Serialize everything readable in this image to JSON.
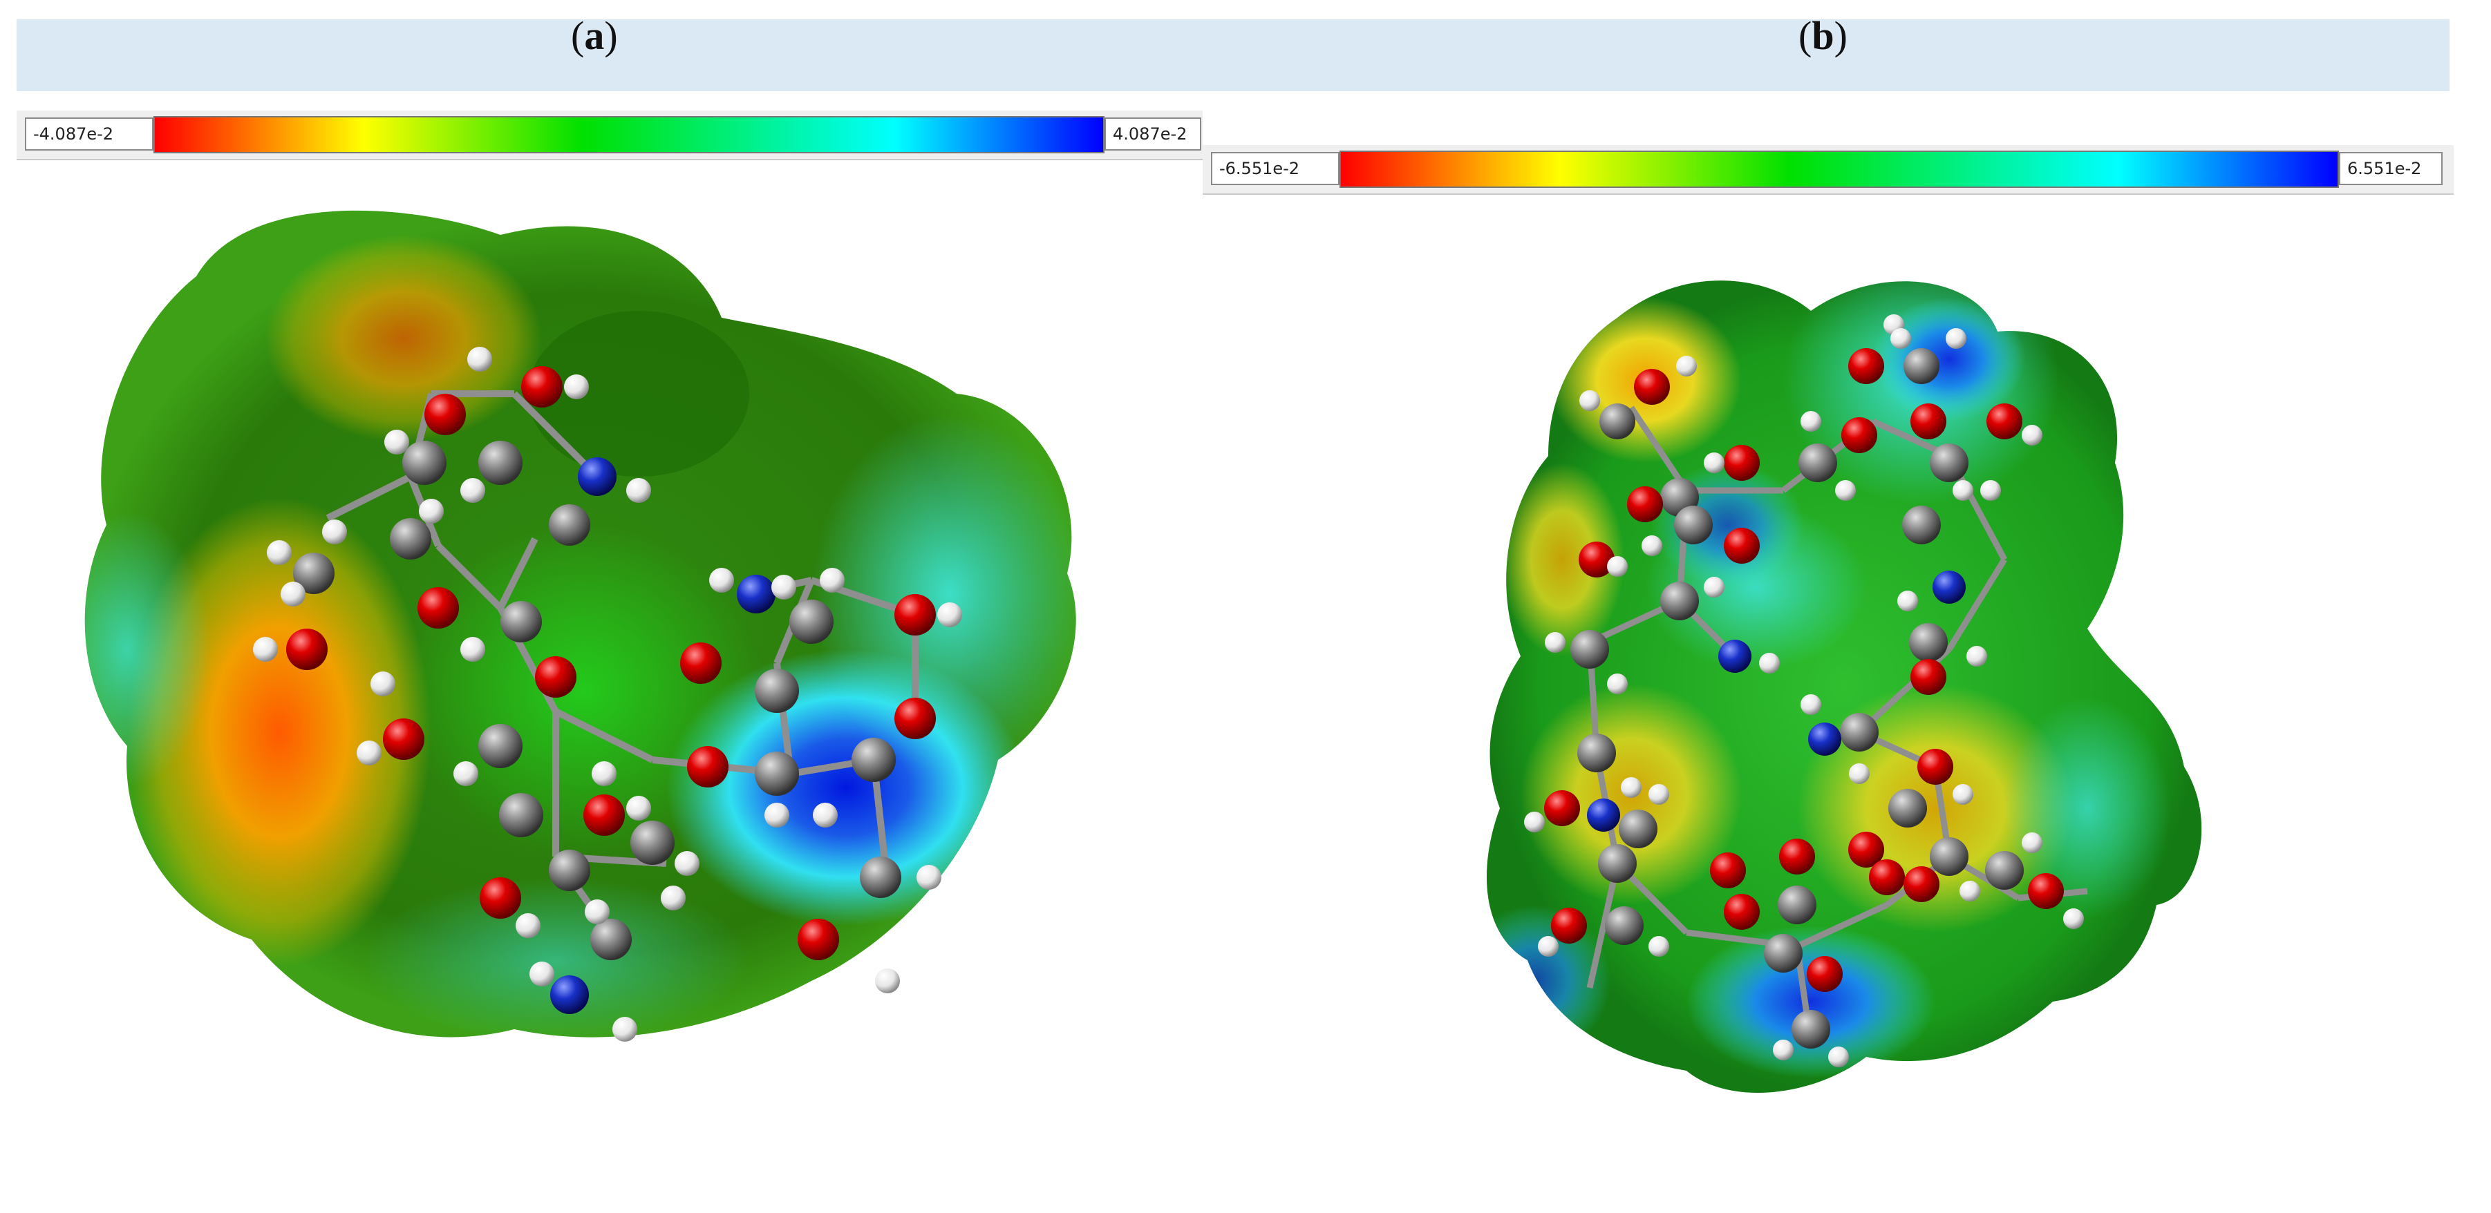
{
  "panels": [
    {
      "label": "a",
      "scale_min": "-4.087e-2",
      "scale_max": "4.087e-2"
    },
    {
      "label": "b",
      "scale_min": "-6.551e-2",
      "scale_max": "6.551e-2"
    }
  ],
  "colors": {
    "header_bg": "#dbe9f5",
    "scale": [
      "#ff0000",
      "#ffff00",
      "#00e000",
      "#00ffff",
      "#0000ff"
    ],
    "atom_oxygen": "#e00000",
    "atom_carbon": "#8c8c8c",
    "atom_nitrogen": "#1830c8",
    "atom_hydrogen": "#f0f0f0"
  }
}
